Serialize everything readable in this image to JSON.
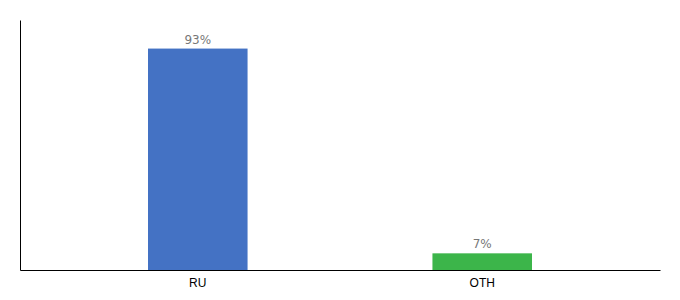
{
  "chart_data": {
    "type": "bar",
    "categories": [
      "RU",
      "OTH"
    ],
    "values": [
      93,
      7
    ],
    "value_labels": [
      "93%",
      "7%"
    ],
    "colors": [
      "#4472c4",
      "#3cb54a"
    ],
    "ylim": [
      0,
      105
    ],
    "data_labels": true,
    "tick_labels": "x",
    "grid": false
  }
}
